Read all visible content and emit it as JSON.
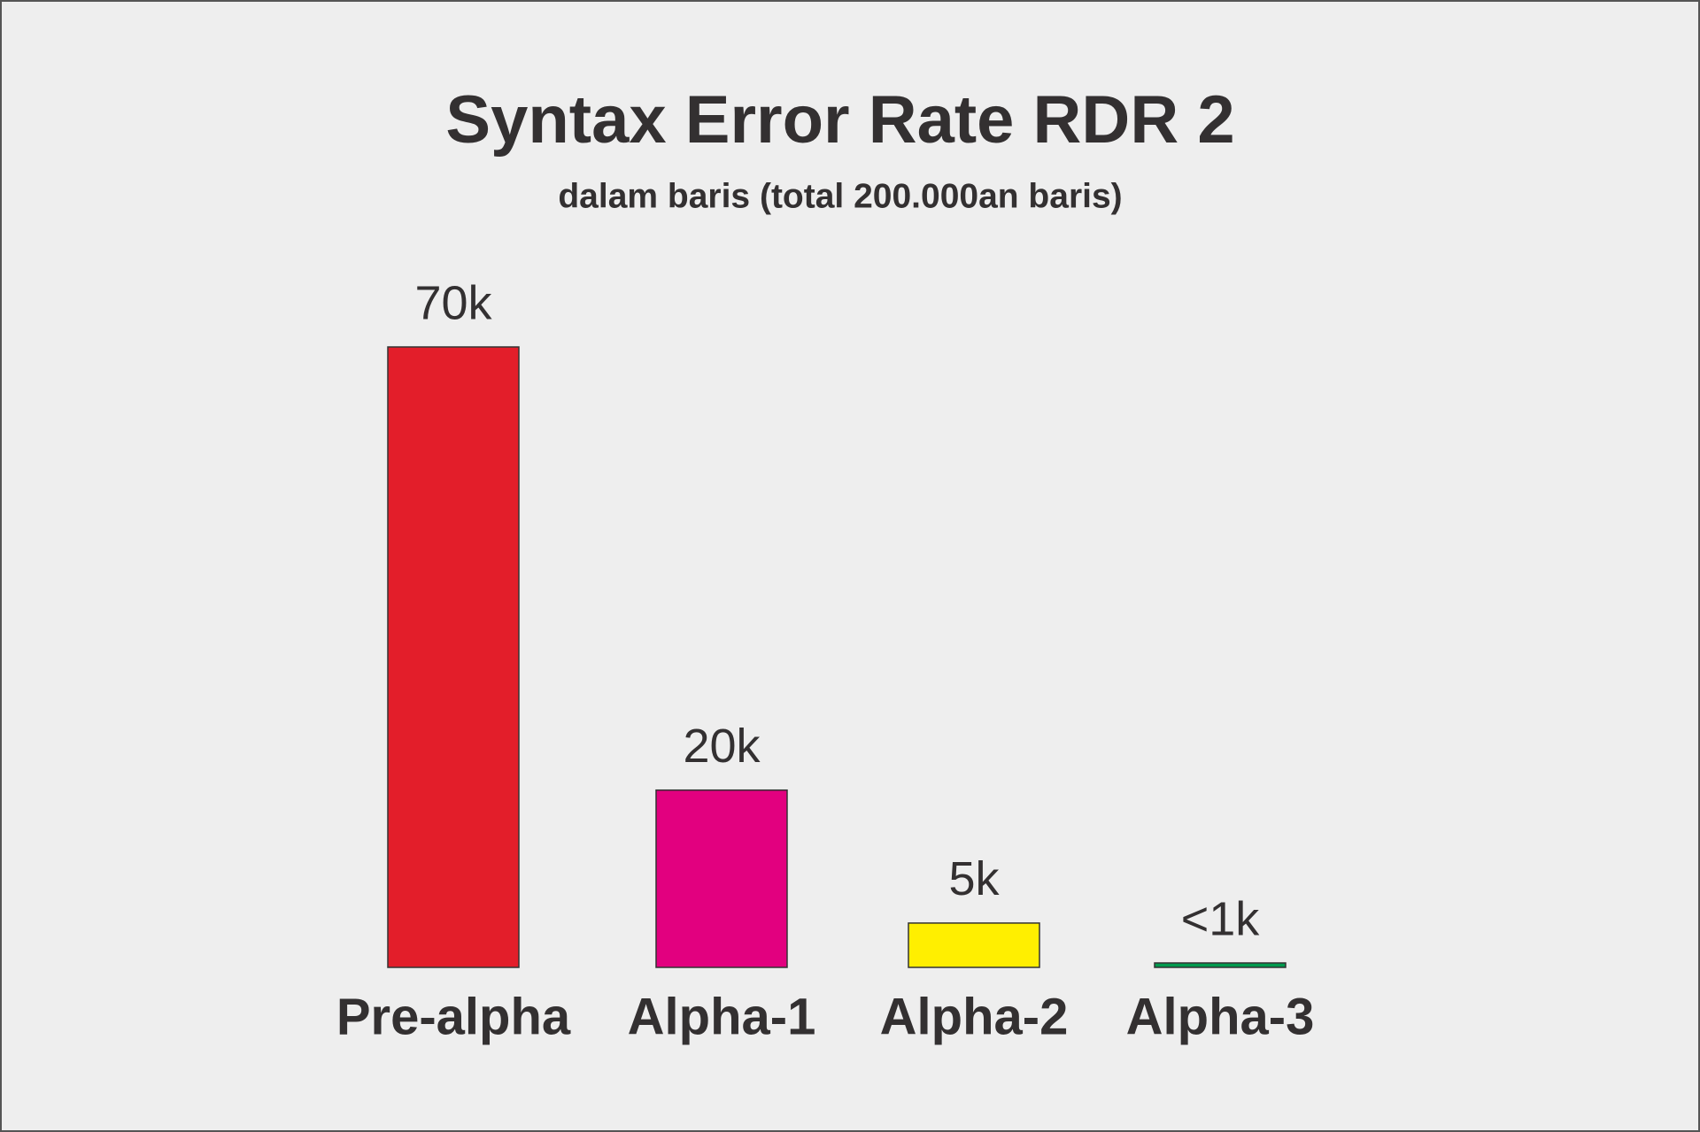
{
  "chart_data": {
    "type": "bar",
    "title": "Syntax Error Rate RDR 2",
    "subtitle": "dalam baris (total 200.000an baris)",
    "categories": [
      "Pre-alpha",
      "Alpha-1",
      "Alpha-2",
      "Alpha-3"
    ],
    "values": [
      70,
      20,
      5,
      0.5
    ],
    "value_labels": [
      "70k",
      "20k",
      "5k",
      "<1k"
    ],
    "colors": [
      "#e31e2a",
      "#e2007f",
      "#ffef00",
      "#009a4e"
    ]
  }
}
